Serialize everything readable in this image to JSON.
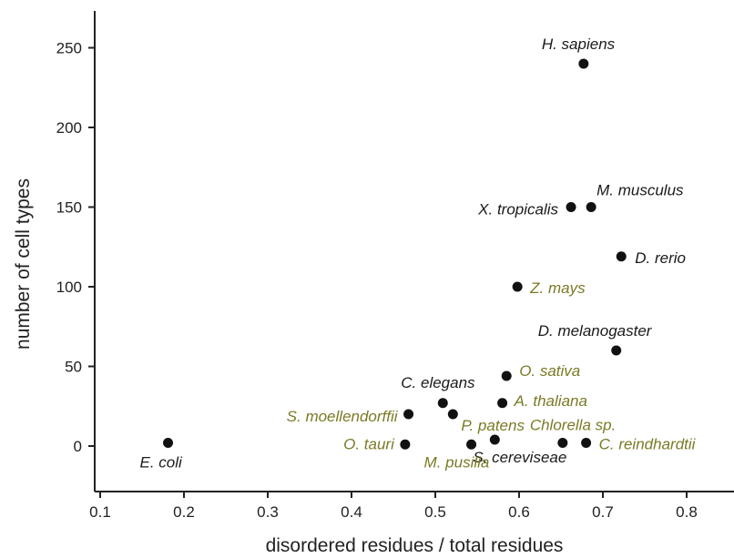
{
  "chart_data": {
    "type": "scatter",
    "title": "",
    "xlabel": "disordered residues / total residues",
    "ylabel": "number of cell types",
    "xlim": [
      0.1,
      0.85
    ],
    "ylim": [
      -28,
      275
    ],
    "xticks": [
      "0.1",
      "0.2",
      "0.3",
      "0.4",
      "0.5",
      "0.6",
      "0.7",
      "0.8"
    ],
    "yticks": [
      "0",
      "50",
      "100",
      "150",
      "200",
      "250"
    ],
    "grid": false,
    "legend": "none",
    "colors": {
      "animal": "#1a1a1a",
      "plant": "#7a7a26",
      "marker": "#111111"
    },
    "points": [
      {
        "label": "H. sapiens",
        "x": 0.677,
        "y": 240,
        "group": "animal"
      },
      {
        "label": "M. musculus",
        "x": 0.686,
        "y": 150,
        "group": "animal"
      },
      {
        "label": "X. tropicalis",
        "x": 0.662,
        "y": 150,
        "group": "animal"
      },
      {
        "label": "D. rerio",
        "x": 0.722,
        "y": 119,
        "group": "animal"
      },
      {
        "label": "Z. mays",
        "x": 0.598,
        "y": 100,
        "group": "plant"
      },
      {
        "label": "D. melanogaster",
        "x": 0.716,
        "y": 60,
        "group": "animal"
      },
      {
        "label": "O. sativa",
        "x": 0.585,
        "y": 44,
        "group": "plant"
      },
      {
        "label": "C. elegans",
        "x": 0.509,
        "y": 27,
        "group": "animal"
      },
      {
        "label": "A. thaliana",
        "x": 0.58,
        "y": 27,
        "group": "plant"
      },
      {
        "label": "S. moellendorffii",
        "x": 0.468,
        "y": 20,
        "group": "plant"
      },
      {
        "label": "P. patens",
        "x": 0.521,
        "y": 20,
        "group": "plant"
      },
      {
        "label": "Chlorella sp.",
        "x": 0.652,
        "y": 2,
        "group": "plant"
      },
      {
        "label": "C. reindhardtii",
        "x": 0.68,
        "y": 2,
        "group": "plant"
      },
      {
        "label": "S. cereviseae",
        "x": 0.571,
        "y": 4,
        "group": "animal"
      },
      {
        "label": "O. tauri",
        "x": 0.464,
        "y": 1,
        "group": "plant"
      },
      {
        "label": "M. pusilla",
        "x": 0.543,
        "y": 1,
        "group": "plant"
      },
      {
        "label": "E. coli",
        "x": 0.181,
        "y": 2,
        "group": "animal"
      }
    ]
  }
}
